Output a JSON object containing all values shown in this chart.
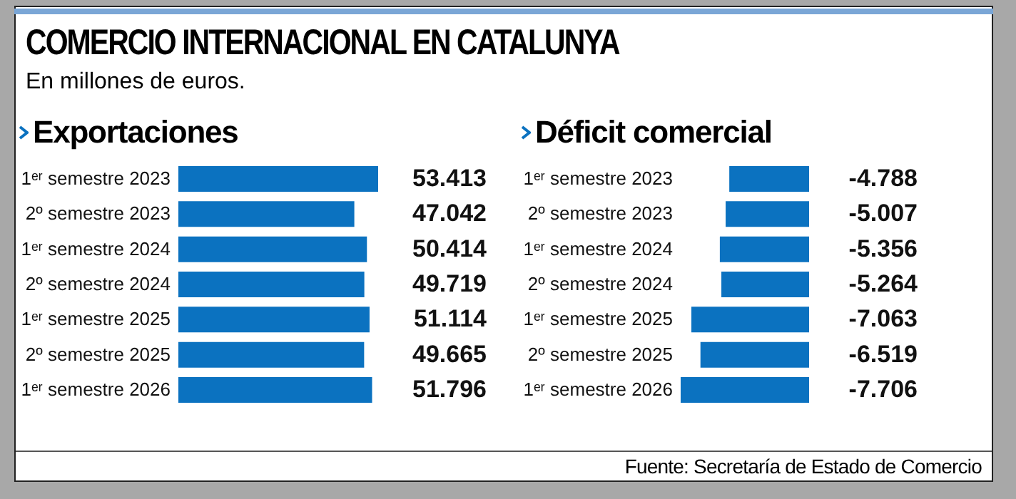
{
  "chart_data": [
    {
      "type": "other",
      "title": "COMERCIO INTERNACIONAL EN CATALUNYA",
      "subtitle": "En millones de euros.",
      "annotations": [
        "Fuente: Secretaría de Estado de Comercio"
      ]
    },
    {
      "type": "bar",
      "orientation": "horizontal",
      "title": "Exportaciones",
      "categories": [
        "1ᵉʳ semestre 2023",
        "2º semestre 2023",
        "1ᵉʳ semestre 2024",
        "2º semestre 2024",
        "1ᵉʳ semestre 2025",
        "2º semestre 2025",
        "1ᵉʳ semestre 2026"
      ],
      "values": [
        53413,
        47042,
        50414,
        49719,
        51114,
        49665,
        51796
      ],
      "color": "#0b72c0",
      "value_labels": [
        "53.413",
        "47.042",
        "50.414",
        "49.719",
        "51.114",
        "49.665",
        "51.796"
      ]
    },
    {
      "type": "bar",
      "orientation": "horizontal",
      "title": "Déficit comercial",
      "categories": [
        "1ᵉʳ semestre 2023",
        "2º semestre 2023",
        "1ᵉʳ semestre 2024",
        "2º semestre 2024",
        "1ᵉʳ semestre 2025",
        "2º semestre 2025",
        "1ᵉʳ semestre 2026"
      ],
      "values": [
        -4788,
        -5007,
        -5356,
        -5264,
        -7063,
        -6519,
        -7706
      ],
      "color": "#0b72c0",
      "value_labels": [
        "-4.788",
        "-5.007",
        "-5.356",
        "-5.264",
        "-7.063",
        "-6.519",
        "-7.706"
      ]
    }
  ]
}
